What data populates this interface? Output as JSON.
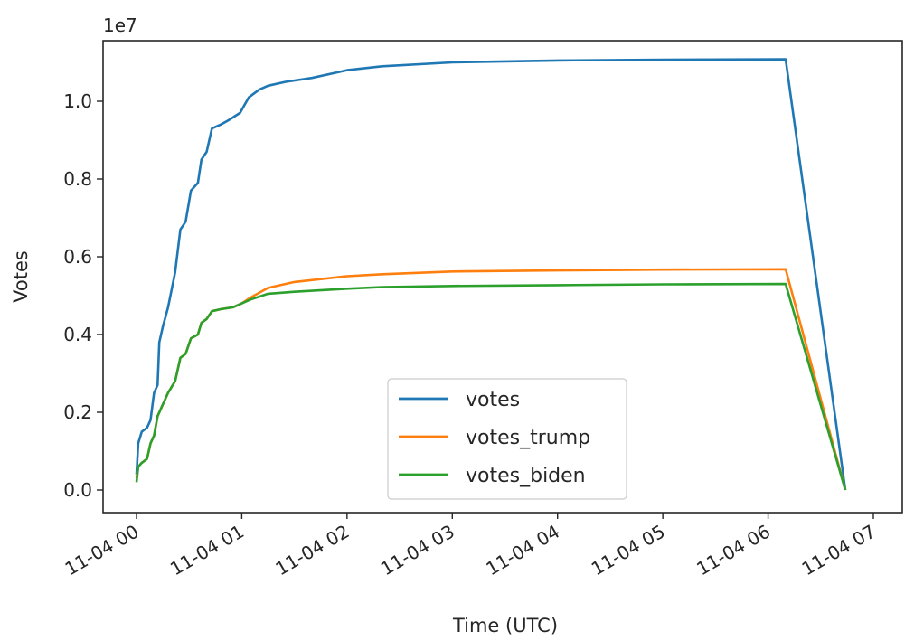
{
  "chart_data": {
    "type": "line",
    "xlabel": "Time (UTC)",
    "ylabel": "Votes",
    "offset_label": "1e7",
    "x_ticks": [
      "11-04 00",
      "11-04 01",
      "11-04 02",
      "11-04 03",
      "11-04 04",
      "11-04 05",
      "11-04 06",
      "11-04 07"
    ],
    "y_ticks": [
      "0.0",
      "0.2",
      "0.4",
      "0.6",
      "0.8",
      "1.0"
    ],
    "xlim": [
      "11-04 00:00",
      "11-04 07:00"
    ],
    "ylim": [
      -0.06,
      1.16
    ],
    "legend_position": "lower center",
    "grid": false,
    "series": [
      {
        "name": "votes",
        "color": "#1f77b4",
        "points": [
          [
            "11-04 00:00",
            0.04
          ],
          [
            "11-04 00:01",
            0.12
          ],
          [
            "11-04 00:03",
            0.15
          ],
          [
            "11-04 00:06",
            0.16
          ],
          [
            "11-04 00:08",
            0.18
          ],
          [
            "11-04 00:10",
            0.25
          ],
          [
            "11-04 00:12",
            0.27
          ],
          [
            "11-04 00:13",
            0.38
          ],
          [
            "11-04 00:15",
            0.42
          ],
          [
            "11-04 00:18",
            0.47
          ],
          [
            "11-04 00:22",
            0.56
          ],
          [
            "11-04 00:25",
            0.67
          ],
          [
            "11-04 00:28",
            0.69
          ],
          [
            "11-04 00:31",
            0.77
          ],
          [
            "11-04 00:35",
            0.79
          ],
          [
            "11-04 00:37",
            0.85
          ],
          [
            "11-04 00:40",
            0.87
          ],
          [
            "11-04 00:43",
            0.93
          ],
          [
            "11-04 00:48",
            0.94
          ],
          [
            "11-04 00:52",
            0.95
          ],
          [
            "11-04 00:59",
            0.97
          ],
          [
            "11-04 01:04",
            1.01
          ],
          [
            "11-04 01:10",
            1.03
          ],
          [
            "11-04 01:15",
            1.04
          ],
          [
            "11-04 01:25",
            1.05
          ],
          [
            "11-04 01:40",
            1.06
          ],
          [
            "11-04 02:00",
            1.08
          ],
          [
            "11-04 02:20",
            1.09
          ],
          [
            "11-04 03:00",
            1.1
          ],
          [
            "11-04 04:00",
            1.105
          ],
          [
            "11-04 05:00",
            1.107
          ],
          [
            "11-04 06:10",
            1.108
          ],
          [
            "11-04 06:44",
            0.0
          ]
        ]
      },
      {
        "name": "votes_trump",
        "color": "#ff7f0e",
        "points": [
          [
            "11-04 00:00",
            0.03
          ],
          [
            "11-04 00:01",
            0.06
          ],
          [
            "11-04 00:03",
            0.07
          ],
          [
            "11-04 00:06",
            0.08
          ],
          [
            "11-04 00:08",
            0.12
          ],
          [
            "11-04 00:10",
            0.14
          ],
          [
            "11-04 00:12",
            0.19
          ],
          [
            "11-04 00:15",
            0.22
          ],
          [
            "11-04 00:18",
            0.25
          ],
          [
            "11-04 00:22",
            0.28
          ],
          [
            "11-04 00:25",
            0.34
          ],
          [
            "11-04 00:28",
            0.35
          ],
          [
            "11-04 00:31",
            0.39
          ],
          [
            "11-04 00:35",
            0.4
          ],
          [
            "11-04 00:37",
            0.43
          ],
          [
            "11-04 00:40",
            0.44
          ],
          [
            "11-04 00:43",
            0.46
          ],
          [
            "11-04 00:48",
            0.465
          ],
          [
            "11-04 00:55",
            0.47
          ],
          [
            "11-04 01:00",
            0.48
          ],
          [
            "11-04 01:05",
            0.495
          ],
          [
            "11-04 01:15",
            0.52
          ],
          [
            "11-04 01:30",
            0.535
          ],
          [
            "11-04 02:00",
            0.55
          ],
          [
            "11-04 02:20",
            0.555
          ],
          [
            "11-04 03:00",
            0.562
          ],
          [
            "11-04 04:00",
            0.565
          ],
          [
            "11-04 05:00",
            0.567
          ],
          [
            "11-04 06:10",
            0.568
          ],
          [
            "11-04 06:44",
            0.0
          ]
        ]
      },
      {
        "name": "votes_biden",
        "color": "#2ca02c",
        "points": [
          [
            "11-04 00:00",
            0.02
          ],
          [
            "11-04 00:01",
            0.06
          ],
          [
            "11-04 00:03",
            0.07
          ],
          [
            "11-04 00:06",
            0.08
          ],
          [
            "11-04 00:08",
            0.12
          ],
          [
            "11-04 00:10",
            0.14
          ],
          [
            "11-04 00:12",
            0.19
          ],
          [
            "11-04 00:15",
            0.22
          ],
          [
            "11-04 00:18",
            0.25
          ],
          [
            "11-04 00:22",
            0.28
          ],
          [
            "11-04 00:25",
            0.34
          ],
          [
            "11-04 00:28",
            0.35
          ],
          [
            "11-04 00:31",
            0.39
          ],
          [
            "11-04 00:35",
            0.4
          ],
          [
            "11-04 00:37",
            0.43
          ],
          [
            "11-04 00:40",
            0.44
          ],
          [
            "11-04 00:43",
            0.46
          ],
          [
            "11-04 00:48",
            0.465
          ],
          [
            "11-04 00:55",
            0.47
          ],
          [
            "11-04 01:00",
            0.48
          ],
          [
            "11-04 01:05",
            0.49
          ],
          [
            "11-04 01:15",
            0.505
          ],
          [
            "11-04 01:30",
            0.51
          ],
          [
            "11-04 02:00",
            0.518
          ],
          [
            "11-04 02:20",
            0.522
          ],
          [
            "11-04 03:00",
            0.525
          ],
          [
            "11-04 04:00",
            0.527
          ],
          [
            "11-04 05:00",
            0.529
          ],
          [
            "11-04 06:10",
            0.53
          ],
          [
            "11-04 06:44",
            0.0
          ]
        ]
      }
    ]
  }
}
